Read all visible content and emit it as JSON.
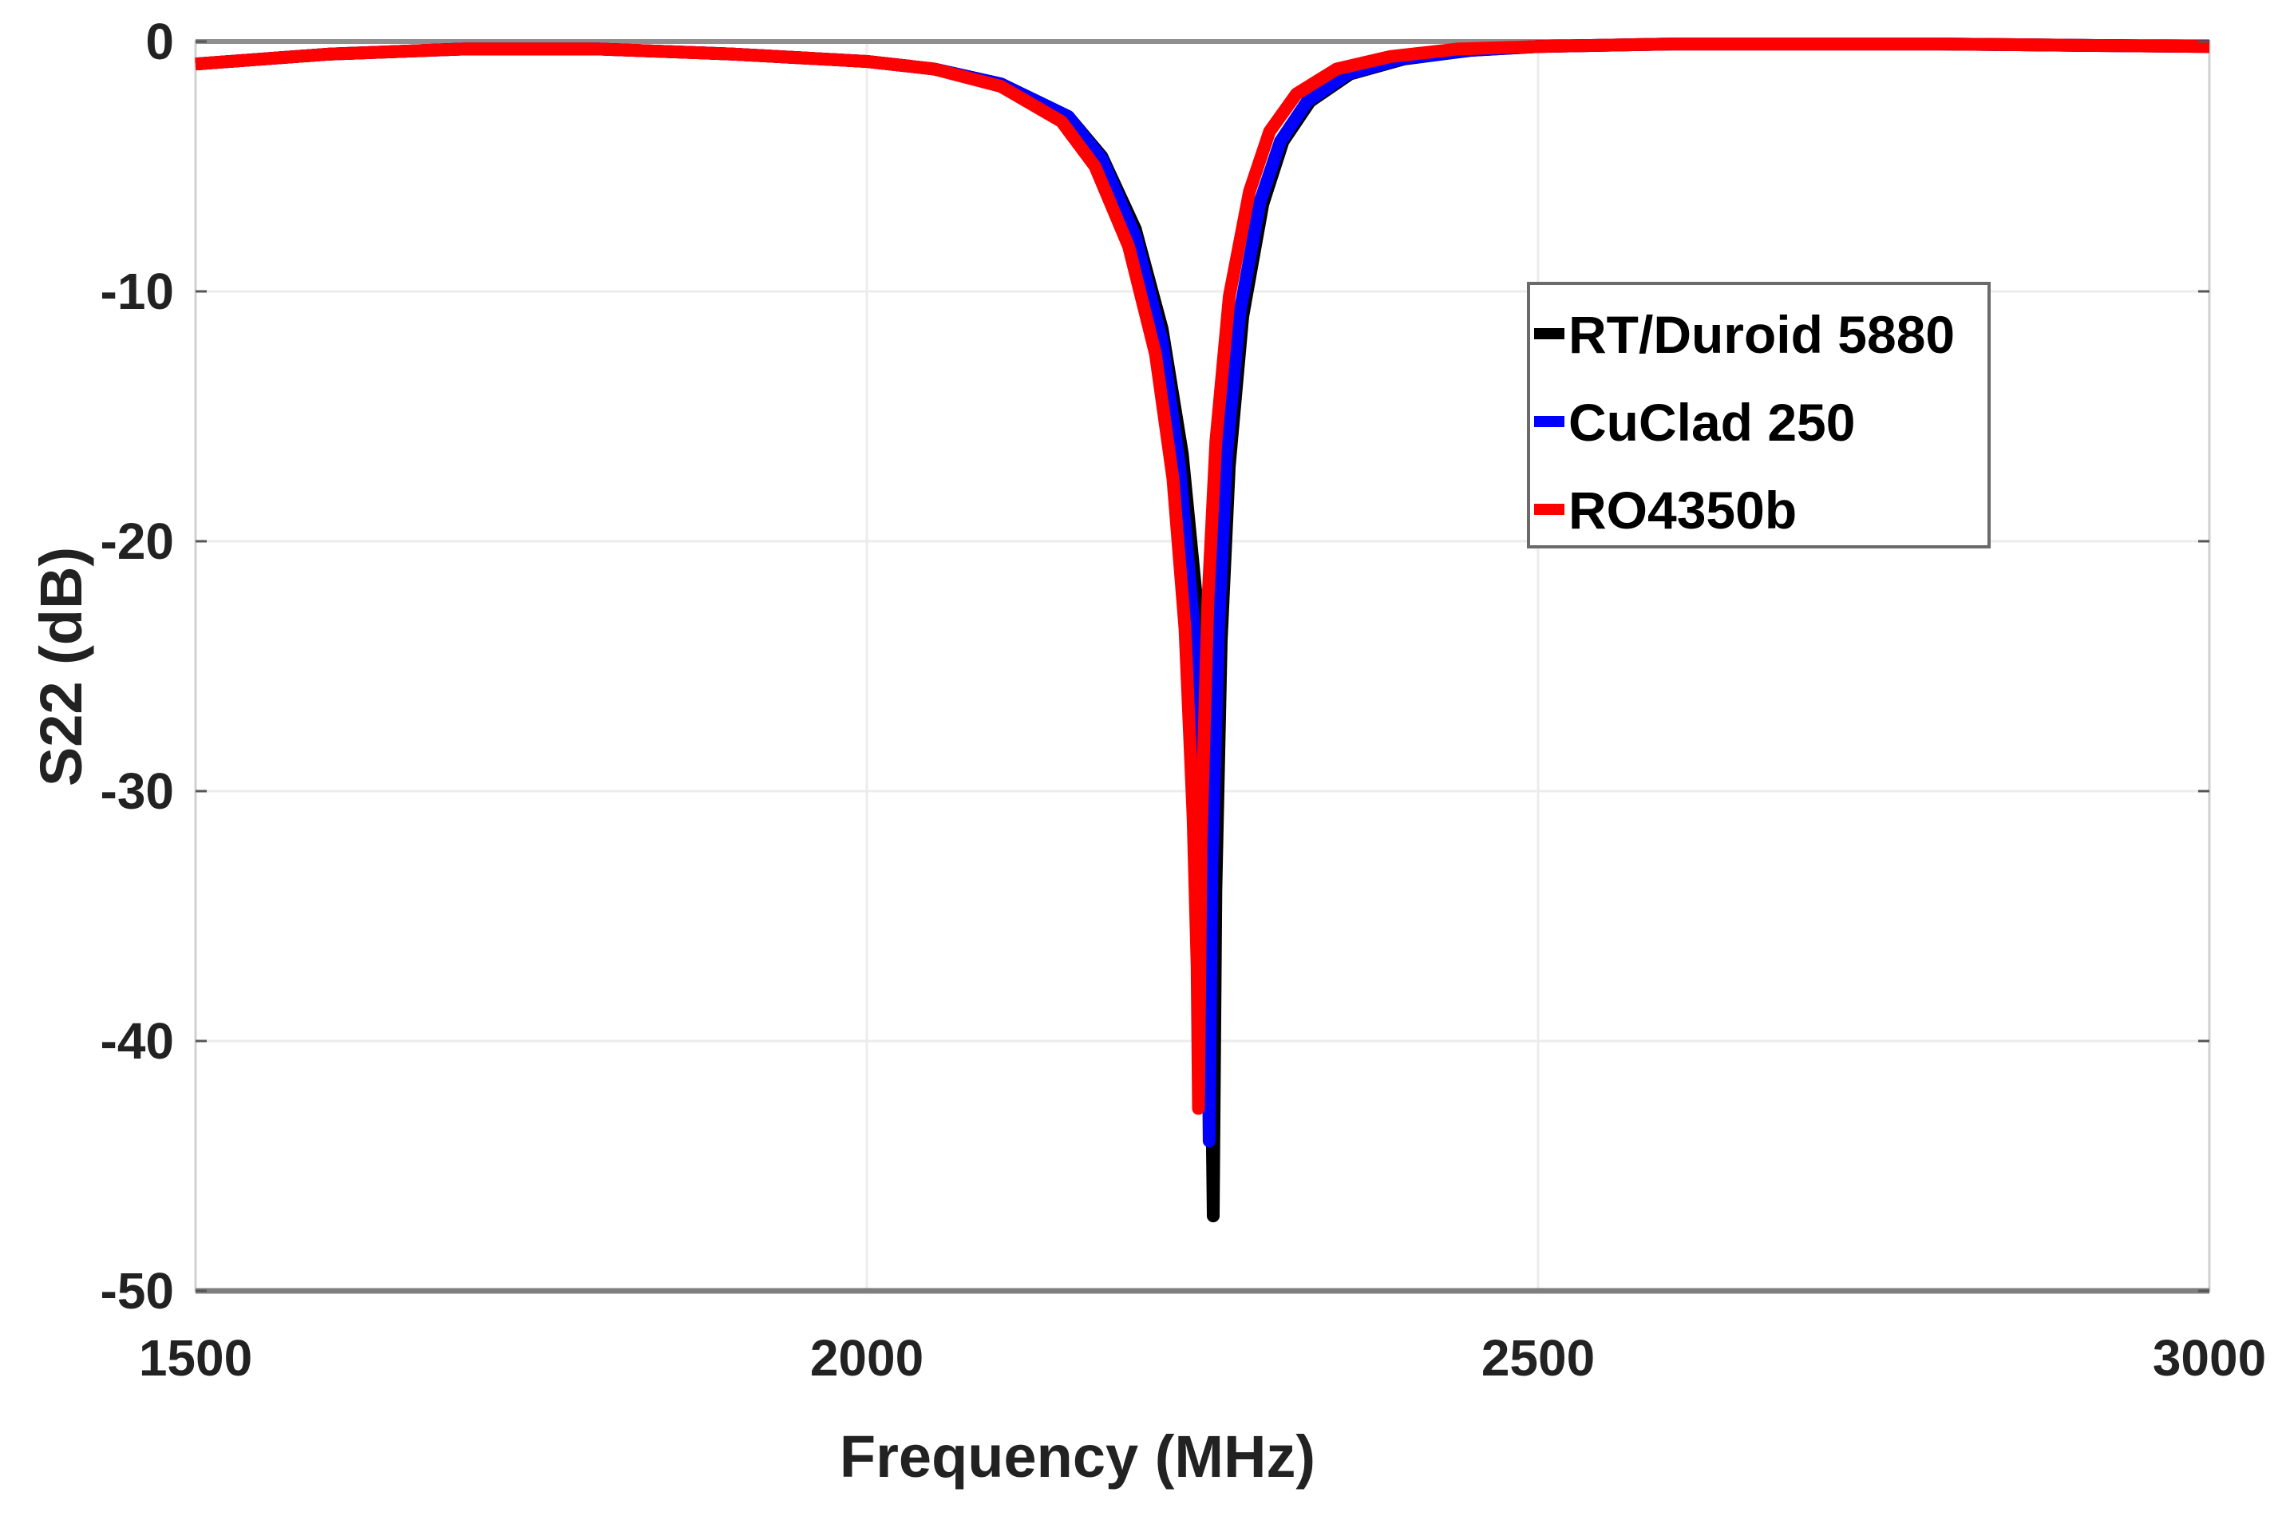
{
  "chart_data": {
    "type": "line",
    "title": "",
    "xlabel": "Frequency (MHz)",
    "ylabel": "S22 (dB)",
    "xlim": [
      1500,
      3000
    ],
    "ylim": [
      -50,
      0
    ],
    "xticks": [
      1500,
      2000,
      2500,
      3000
    ],
    "yticks": [
      0,
      -10,
      -20,
      -30,
      -40,
      -50
    ],
    "grid": true,
    "legend_position": "upper right (inside)",
    "series": [
      {
        "name": "RT/Duroid 5880",
        "color": "#000000",
        "x": [
          1500,
          1600,
          1700,
          1800,
          1900,
          2000,
          2050,
          2100,
          2150,
          2175,
          2200,
          2220,
          2235,
          2245,
          2252,
          2256,
          2258,
          2260,
          2264,
          2270,
          2280,
          2295,
          2310,
          2330,
          2360,
          2400,
          2450,
          2500,
          2600,
          2700,
          2800,
          2900,
          3000
        ],
        "y": [
          -0.9,
          -0.5,
          -0.3,
          -0.3,
          -0.5,
          -0.8,
          -1.1,
          -1.7,
          -3.0,
          -4.6,
          -7.5,
          -11.5,
          -16.5,
          -22.0,
          -30.0,
          -38.0,
          -47.0,
          -34.0,
          -24.0,
          -17.0,
          -11.0,
          -6.5,
          -4.0,
          -2.4,
          -1.3,
          -0.7,
          -0.35,
          -0.2,
          -0.1,
          -0.1,
          -0.1,
          -0.15,
          -0.2
        ]
      },
      {
        "name": "CuClad 250",
        "color": "#0000ff",
        "x": [
          1500,
          1600,
          1700,
          1800,
          1900,
          2000,
          2050,
          2100,
          2150,
          2175,
          2200,
          2220,
          2233,
          2243,
          2250,
          2254,
          2255,
          2257,
          2262,
          2268,
          2278,
          2293,
          2308,
          2328,
          2358,
          2398,
          2450,
          2500,
          2600,
          2700,
          2800,
          2900,
          3000
        ],
        "y": [
          -0.9,
          -0.5,
          -0.3,
          -0.3,
          -0.5,
          -0.8,
          -1.1,
          -1.7,
          -3.0,
          -4.7,
          -7.8,
          -12.0,
          -17.0,
          -23.0,
          -31.0,
          -38.0,
          -44.0,
          -33.0,
          -23.5,
          -16.5,
          -10.8,
          -6.4,
          -4.0,
          -2.4,
          -1.3,
          -0.7,
          -0.35,
          -0.2,
          -0.1,
          -0.1,
          -0.1,
          -0.15,
          -0.2
        ]
      },
      {
        "name": "RO4350b",
        "color": "#ff0000",
        "x": [
          1500,
          1600,
          1700,
          1800,
          1900,
          2000,
          2050,
          2100,
          2145,
          2170,
          2195,
          2215,
          2228,
          2237,
          2243,
          2246,
          2247,
          2249,
          2254,
          2260,
          2270,
          2285,
          2300,
          2320,
          2350,
          2390,
          2440,
          2500,
          2600,
          2700,
          2800,
          2900,
          3000
        ],
        "y": [
          -0.9,
          -0.5,
          -0.3,
          -0.3,
          -0.5,
          -0.8,
          -1.1,
          -1.8,
          -3.2,
          -5.0,
          -8.2,
          -12.5,
          -17.5,
          -23.5,
          -31.0,
          -37.0,
          -42.7,
          -32.0,
          -22.5,
          -16.0,
          -10.2,
          -6.0,
          -3.6,
          -2.1,
          -1.1,
          -0.6,
          -0.3,
          -0.2,
          -0.1,
          -0.1,
          -0.1,
          -0.15,
          -0.2
        ]
      }
    ]
  },
  "axes": {
    "xlabel": "Frequency (MHz)",
    "ylabel": "S22 (dB)",
    "xtick_labels": [
      "1500",
      "2000",
      "2500",
      "3000"
    ],
    "ytick_labels": [
      "0",
      "-10",
      "-20",
      "-30",
      "-40",
      "-50"
    ]
  },
  "legend": {
    "items": [
      {
        "label": "RT/Duroid 5880",
        "color": "#000000"
      },
      {
        "label": "CuClad 250",
        "color": "#0000ff"
      },
      {
        "label": "RO4350b",
        "color": "#ff0000"
      }
    ]
  }
}
